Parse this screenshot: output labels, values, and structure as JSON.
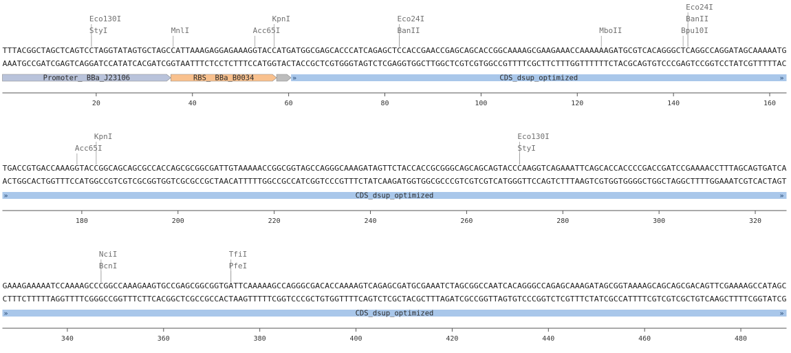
{
  "colors": {
    "promoter": "#b9c3db",
    "rbs": "#f9c18e",
    "spacer": "#bcbcbc",
    "cds": "#a9c7ea",
    "enzyme_text": "#6f6f6f",
    "leader_line": "#9a9a9a",
    "ruler": "#555555"
  },
  "rows": [
    {
      "start": 1,
      "top": "TTTACGGCTAGCTCAGTCCTAGGTATAGTGCTAGCCATTAAAGAGGAGAAAGGTACCATGATGGCGAGCACCCATCAGAGCTCCACCGAACCGAGCAGCACCGGCAAAAGCGAAGAAACCAAAAAAGATGCGTCACAGGGCTCAGGCCAGGATAGCAAAAATG",
      "bottom": "AAATGCCGATCGAGTCAGGATCCATATCACGATCGGTAATTTCTCCTCTTTCCATGGTACTACCGCTCGTGGGTAGTCTCGAGGTGGCTTGGCTCGTCGTGGCCGTTTTCGCTTCTTTGGTTTTTTCTACGCAGTGTCCCGAGTCCGGTCCTATCGTTTTTAC",
      "enzymes": [
        {
          "name": "Eco130I",
          "pos": 19,
          "level": 2
        },
        {
          "name": "StyI",
          "pos": 19,
          "level": 1
        },
        {
          "name": "MnlI",
          "pos": 36,
          "level": 1
        },
        {
          "name": "KpnI",
          "pos": 57,
          "level": 2
        },
        {
          "name": "Acc65I",
          "pos": 53,
          "level": 1
        },
        {
          "name": "Eco24I",
          "pos": 83,
          "level": 2
        },
        {
          "name": "BanII",
          "pos": 83,
          "level": 1
        },
        {
          "name": "MboII",
          "pos": 125,
          "level": 1
        },
        {
          "name": "Eco24I",
          "pos": 143,
          "level": 3
        },
        {
          "name": "BanII",
          "pos": 143,
          "level": 2
        },
        {
          "name": "Bpu10I",
          "pos": 142,
          "level": 1
        }
      ],
      "features": [
        {
          "label": "Promoter_ BBa_J23106",
          "start": 1,
          "end": 35,
          "kind": "promoter"
        },
        {
          "label": "RBS_ BBa_B0034",
          "start": 36,
          "end": 57,
          "kind": "rbs"
        },
        {
          "label": "",
          "start": 58,
          "end": 60,
          "kind": "spacer"
        },
        {
          "label": "CDS_dsup_optimized",
          "start": 61,
          "end": 163,
          "kind": "cds"
        }
      ],
      "ticks": [
        20,
        40,
        60,
        80,
        100,
        120,
        140,
        160
      ]
    },
    {
      "start": 164,
      "top": "TGACCGTGACCAAAGGTACCGGCAGCAGCGCCACCAGCGCGGCGATTGTAAAAACCGGCGGTAGCCAGGGCAAAGATAGTTCTACCACCGCGGGCAGCAGCAGTACCCAAGGTCAGAAATTCAGCACCACCCCGACCGATCCGAAAACCTTTAGCAGTGATCA",
      "bottom": "ACTGGCACTGGTTTCCATGGCCGTCGTCGCGGTGGTCGCGCCGCTAACATTTTTGGCCGCCATCGGTCCCGTTTCTATCAAGATGGTGGCGCCCGTCGTCGTCATGGGTTCCAGTCTTTAAGTCGTGGTGGGGCTGGCTAGGCTTTTGGAAATCGTCACTAGT",
      "enzymes": [
        {
          "name": "KpnI",
          "pos": 183,
          "level": 2
        },
        {
          "name": "Acc65I",
          "pos": 179,
          "level": 1
        },
        {
          "name": "Eco130I",
          "pos": 271,
          "level": 2
        },
        {
          "name": "StyI",
          "pos": 271,
          "level": 1
        }
      ],
      "features": [
        {
          "label": "CDS_dsup_optimized",
          "start": 164,
          "end": 326,
          "kind": "cds"
        }
      ],
      "ticks": [
        180,
        200,
        220,
        240,
        260,
        280,
        300,
        320
      ]
    },
    {
      "start": 327,
      "top": "GAAAGAAAAATCCAAAAGCCCGGCCAAAGAAGTGCCGAGCGGCGGTGATTCAAAAAGCCAGGGCGACACCAAAAGTCAGAGCGATGCGAAATCTAGCGGCCAATCACAGGGCCAGAGCAAAGATAGCGGTAAAAGCAGCAGCGACAGTTCGAAAAGCCATAGC",
      "bottom": "CTTTCTTTTTAGGTTTTCGGGCCGGTTTCTTCACGGCTCGCCGCCACTAAGTTTTTCGGTCCCGCTGTGGTTTTCAGTCTCGCTACGCTTTAGATCGCCGGTTAGTGTCCCGGTCTCGTTTCTATCGCCATTTTCGTCGTCGCTGTCAAGCTTTTCGGTATCG",
      "enzymes": [
        {
          "name": "NciI",
          "pos": 347,
          "level": 2
        },
        {
          "name": "BcnI",
          "pos": 347,
          "level": 1
        },
        {
          "name": "TfiI",
          "pos": 374,
          "level": 2
        },
        {
          "name": "PfeI",
          "pos": 374,
          "level": 1
        }
      ],
      "features": [
        {
          "label": "CDS_dsup_optimized",
          "start": 327,
          "end": 489,
          "kind": "cds"
        }
      ],
      "ticks": [
        340,
        360,
        380,
        400,
        420,
        440,
        460,
        480
      ]
    }
  ]
}
